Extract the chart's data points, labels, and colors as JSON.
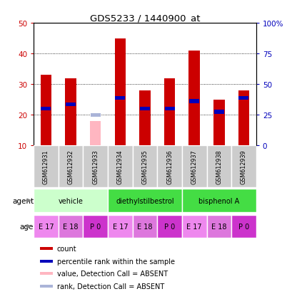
{
  "title": "GDS5233 / 1440900_at",
  "samples": [
    "GSM612931",
    "GSM612932",
    "GSM612933",
    "GSM612934",
    "GSM612935",
    "GSM612936",
    "GSM612937",
    "GSM612938",
    "GSM612939"
  ],
  "counts": [
    33,
    32,
    null,
    45,
    28,
    32,
    41,
    25,
    28
  ],
  "ranks": [
    22,
    23.5,
    null,
    25.5,
    22,
    22,
    24.5,
    21,
    25.5
  ],
  "absent_count": [
    null,
    null,
    18,
    null,
    null,
    null,
    null,
    null,
    null
  ],
  "absent_rank": [
    null,
    null,
    20,
    null,
    null,
    null,
    null,
    null,
    null
  ],
  "count_color": "#cc0000",
  "rank_color": "#0000bb",
  "absent_count_color": "#ffb6c1",
  "absent_rank_color": "#aab4d8",
  "bar_width": 0.45,
  "ylim_left": [
    10,
    50
  ],
  "ylim_right": [
    0,
    100
  ],
  "yticks_left": [
    10,
    20,
    30,
    40,
    50
  ],
  "yticks_right": [
    0,
    25,
    50,
    75,
    100
  ],
  "agent_info": [
    {
      "label": "vehicle",
      "start": 0,
      "end": 3,
      "color": "#ccffcc"
    },
    {
      "label": "diethylstilbestrol",
      "start": 3,
      "end": 6,
      "color": "#44dd44"
    },
    {
      "label": "bisphenol A",
      "start": 6,
      "end": 9,
      "color": "#44dd44"
    }
  ],
  "ages": [
    "E 17",
    "E 18",
    "P 0",
    "E 17",
    "E 18",
    "P 0",
    "E 17",
    "E 18",
    "P 0"
  ],
  "age_color_map": {
    "E 17": "#ee88ee",
    "E 18": "#dd77dd",
    "P 0": "#cc33cc"
  },
  "left_axis_color": "#cc0000",
  "right_axis_color": "#0000bb",
  "bg_color": "#cccccc",
  "legend_items": [
    {
      "color": "#cc0000",
      "label": "count"
    },
    {
      "color": "#0000bb",
      "label": "percentile rank within the sample"
    },
    {
      "color": "#ffb6c1",
      "label": "value, Detection Call = ABSENT"
    },
    {
      "color": "#aab4d8",
      "label": "rank, Detection Call = ABSENT"
    }
  ]
}
